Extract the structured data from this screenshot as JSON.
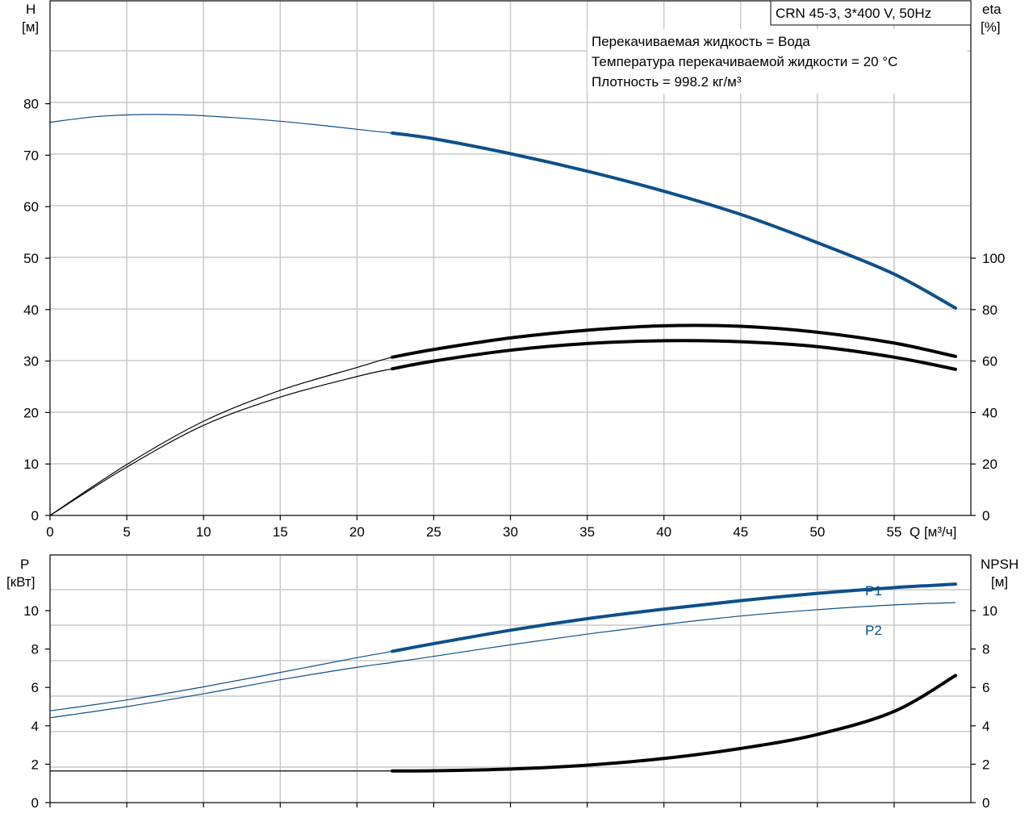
{
  "chart_data": [
    {
      "type": "line",
      "title": "CRN 45-3, 3*400 V, 50Hz",
      "annotations": [
        "Перекачиваемая жидкость = Вода",
        "Температура перекачиваемой жидкости = 20 °C",
        "Плотность = 998.2 кг/м³"
      ],
      "xlabel": "Q [м³/ч]",
      "ylabel_left_name": "H",
      "ylabel_left_unit": "[м]",
      "ylabel_right_name": "eta",
      "ylabel_right_unit": "[%]",
      "xlim": [
        0,
        60
      ],
      "x_ticks": [
        0,
        5,
        10,
        15,
        20,
        25,
        30,
        35,
        40,
        45,
        50,
        55
      ],
      "ylim_left": [
        0,
        100
      ],
      "y_left_ticks": [
        0,
        10,
        20,
        30,
        40,
        50,
        60,
        70,
        80
      ],
      "ylim_right": [
        0,
        200
      ],
      "y_right_ticks": [
        0,
        20,
        40,
        60,
        80,
        100
      ],
      "grid": true,
      "series": [
        {
          "axis": "left",
          "color": "#0d4f8b",
          "thick_from": 22.3,
          "x": [
            0,
            3,
            6,
            9,
            12,
            15,
            18,
            21,
            22.3,
            25,
            30,
            35,
            40,
            45,
            50,
            55,
            59
          ],
          "y": [
            76.4,
            77.5,
            77.9,
            77.8,
            77.3,
            76.6,
            75.7,
            74.7,
            74.3,
            73.2,
            70.3,
            66.9,
            63.0,
            58.5,
            53.0,
            46.9,
            40.3
          ]
        },
        {
          "axis": "right",
          "color": "#000000",
          "thick_from": 22.3,
          "x": [
            0,
            5,
            10,
            15,
            20,
            22.3,
            25,
            30,
            35,
            40,
            45,
            50,
            55,
            59
          ],
          "y": [
            0,
            19.8,
            36.6,
            48.6,
            57.5,
            61.5,
            64.5,
            69.0,
            72.0,
            73.7,
            73.5,
            71.2,
            67.0,
            61.8
          ]
        },
        {
          "axis": "right",
          "color": "#000000",
          "thick_from": 22.3,
          "x": [
            0,
            5,
            10,
            15,
            20,
            22.3,
            25,
            30,
            35,
            40,
            45,
            50,
            55,
            59
          ],
          "y": [
            0,
            18.8,
            35.0,
            46.0,
            54.0,
            57.0,
            60.0,
            64.2,
            66.8,
            67.9,
            67.5,
            65.6,
            61.5,
            56.8
          ]
        }
      ]
    },
    {
      "type": "line",
      "ylabel_left_name": "P",
      "ylabel_left_unit": "[кВт]",
      "ylabel_right_name": "NPSH",
      "ylabel_right_unit": "[м]",
      "xlim": [
        0,
        60
      ],
      "ylim_left": [
        0,
        12.9
      ],
      "y_left_ticks": [
        0,
        2,
        4,
        6,
        8,
        10
      ],
      "ylim_right": [
        0,
        12.9
      ],
      "y_right_ticks": [
        0,
        2,
        4,
        6,
        8,
        10
      ],
      "grid": true,
      "series": [
        {
          "name": "P1",
          "axis": "left",
          "color": "#0d4f8b",
          "thick_from": 22.3,
          "x": [
            0,
            5,
            10,
            15,
            20,
            22.3,
            25,
            30,
            35,
            40,
            45,
            50,
            55,
            59
          ],
          "y": [
            4.78,
            5.35,
            6.03,
            6.78,
            7.55,
            7.88,
            8.28,
            8.98,
            9.58,
            10.08,
            10.52,
            10.9,
            11.2,
            11.38
          ]
        },
        {
          "name": "P2",
          "axis": "left",
          "color": "#0d4f8b",
          "thick_from": 59,
          "x": [
            0,
            5,
            10,
            15,
            20,
            22.3,
            25,
            30,
            35,
            40,
            45,
            50,
            55,
            59
          ],
          "y": [
            4.42,
            5.0,
            5.67,
            6.4,
            7.05,
            7.3,
            7.62,
            8.22,
            8.78,
            9.28,
            9.72,
            10.05,
            10.3,
            10.42
          ]
        },
        {
          "axis": "right",
          "color": "#000000",
          "thick_from": 22.3,
          "x": [
            0,
            5,
            10,
            15,
            20,
            22.3,
            25,
            30,
            35,
            40,
            45,
            50,
            55,
            59
          ],
          "y": [
            1.65,
            1.65,
            1.65,
            1.65,
            1.65,
            1.65,
            1.66,
            1.75,
            1.95,
            2.3,
            2.82,
            3.55,
            4.75,
            6.62
          ]
        }
      ]
    }
  ]
}
